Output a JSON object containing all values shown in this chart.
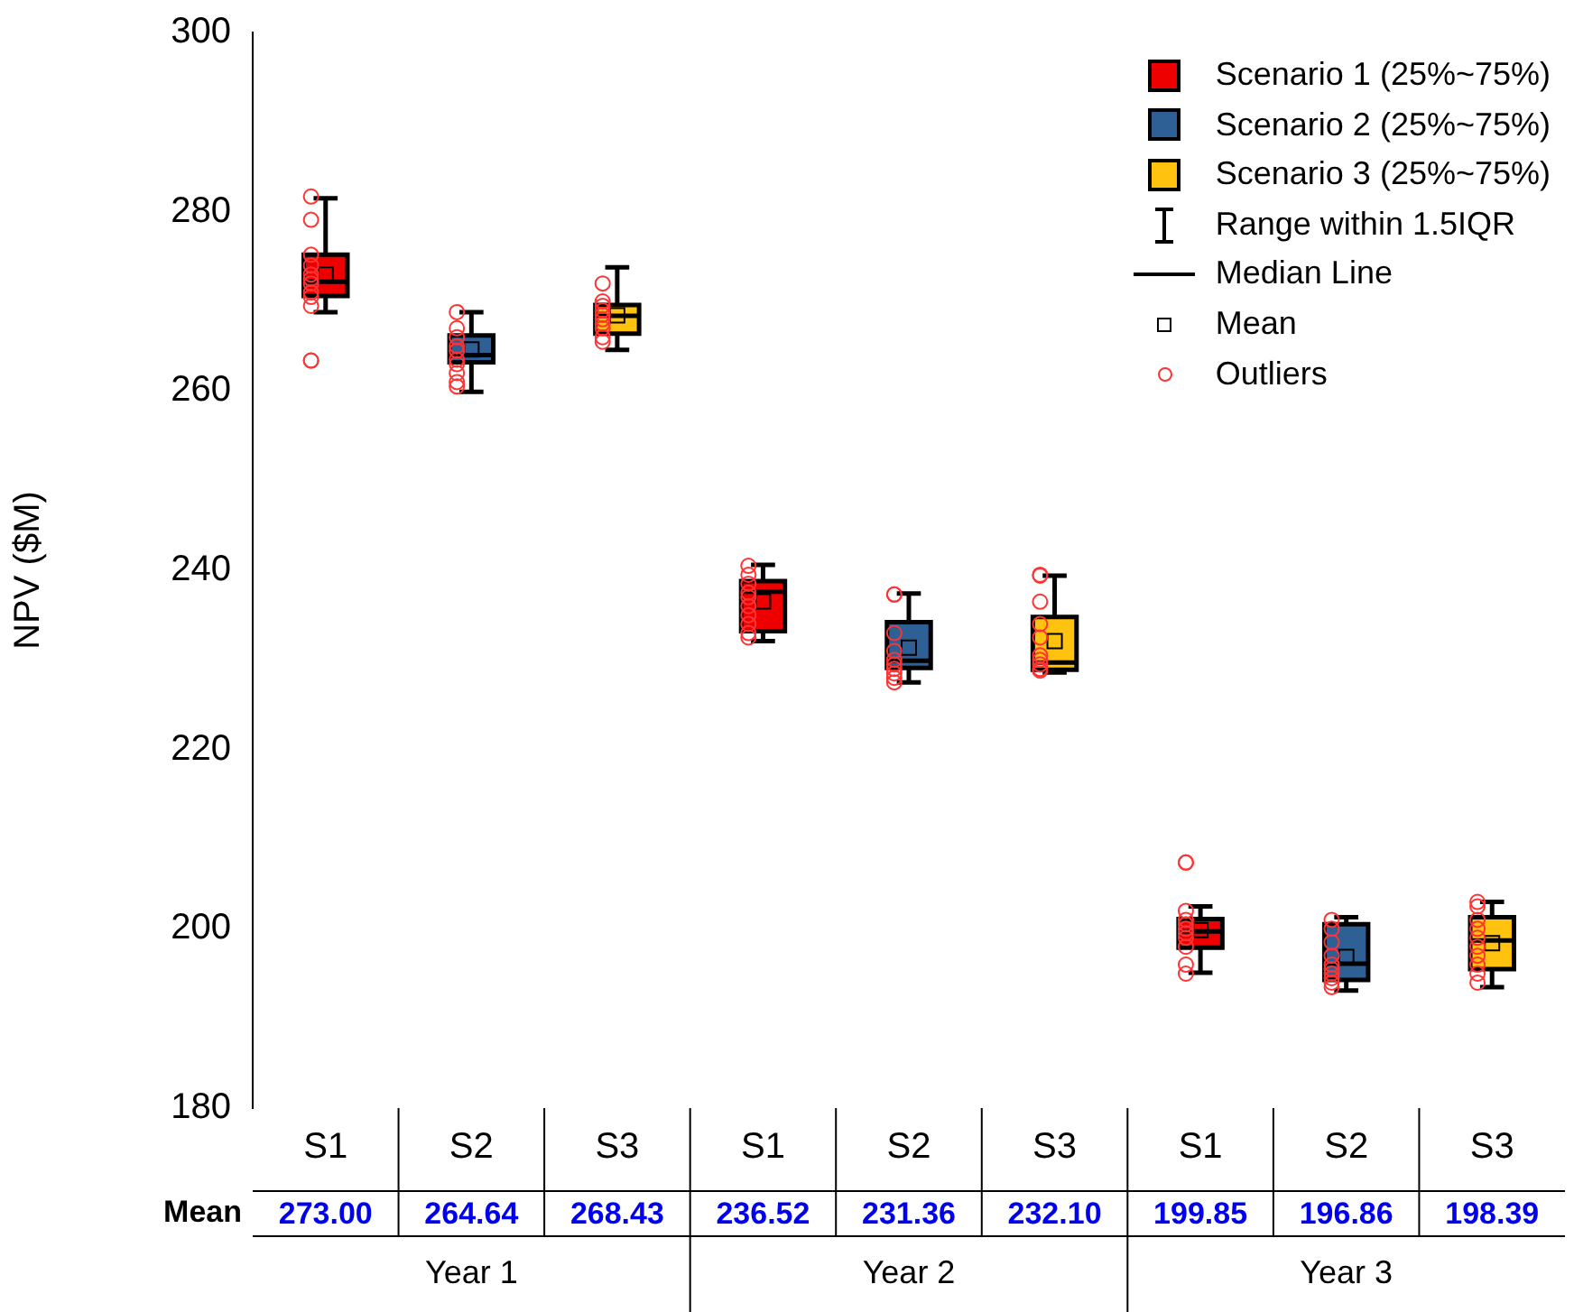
{
  "chart_data": {
    "type": "box",
    "ylabel": "NPV ($M)",
    "categories": [
      "S1",
      "S2",
      "S3",
      "S1",
      "S2",
      "S3",
      "S1",
      "S2",
      "S3"
    ],
    "ylim": [
      180,
      300
    ],
    "yticks": [
      180,
      200,
      220,
      240,
      260,
      280,
      300
    ],
    "grid": false,
    "legend": "top right",
    "value_labels": [
      "273.00",
      "264.64",
      "268.43",
      "236.52",
      "231.36",
      "232.10",
      "199.85",
      "196.86",
      "198.39"
    ],
    "annotations": [
      "Range within 1.5IQR",
      "Median Line",
      "Mean",
      "Outliers",
      "Mean",
      "Year 1",
      "Year 2",
      "Year 3"
    ],
    "series": [
      {
        "name": "Scenario 1 (25%~75%)",
        "color": "#ee0000",
        "boxes": [
          {
            "low": 268.8,
            "q1": 270.6,
            "median": 272.2,
            "q3": 275.2,
            "high": 281.5,
            "mean": 273.0,
            "outliers": [
              281.7,
              279.1,
              275.2,
              274,
              273,
              272.5,
              272,
              271,
              270.5,
              269.5,
              263.4,
              263.4
            ]
          },
          null,
          null,
          {
            "low": 232.1,
            "q1": 233.2,
            "median": 237.6,
            "q3": 238.8,
            "high": 240.6,
            "mean": 236.52,
            "outliers": [
              240.5,
              239.5,
              238.5,
              237.5,
              237,
              236,
              235,
              234,
              233,
              232.5
            ]
          },
          null,
          null,
          {
            "low": 195.1,
            "q1": 197.9,
            "median": 199.7,
            "q3": 201.1,
            "high": 202.5,
            "mean": 199.85,
            "outliers": [
              207.4,
              207.4,
              202,
              201,
              200.5,
              200,
              199.5,
              199,
              198,
              196,
              195
            ]
          },
          null,
          null
        ]
      },
      {
        "name": "Scenario 2 (25%~75%)",
        "color": "#2e5f95",
        "boxes": [
          null,
          {
            "low": 259.9,
            "q1": 263.2,
            "median": 264.0,
            "q3": 266.2,
            "high": 268.8,
            "mean": 264.64,
            "outliers": [
              268.8,
              267,
              266,
              265,
              264.5,
              263.5,
              263,
              262,
              261,
              260.5
            ]
          },
          null,
          null,
          {
            "low": 227.5,
            "q1": 229.1,
            "median": 229.9,
            "q3": 234.2,
            "high": 237.4,
            "mean": 231.36,
            "outliers": [
              237.3,
              237.3,
              233,
              231,
              230,
              229.5,
              229,
              228.5,
              228,
              227.5
            ]
          },
          null,
          null,
          {
            "low": 193.1,
            "q1": 194.3,
            "median": 196.1,
            "q3": 200.5,
            "high": 201.3,
            "mean": 196.86,
            "outliers": [
              201,
              200,
              198.5,
              197,
              196,
              195.5,
              195,
              194.5,
              194,
              193.5
            ]
          },
          null
        ]
      },
      {
        "name": "Scenario 3 (25%~75%)",
        "color": "#ffc20e",
        "boxes": [
          null,
          null,
          {
            "low": 264.6,
            "q1": 266.4,
            "median": 268.4,
            "q3": 269.6,
            "high": 273.8,
            "mean": 268.43,
            "outliers": [
              272,
              270,
              269.5,
              269,
              268.5,
              268,
              267.5,
              267,
              266,
              265.5
            ]
          },
          null,
          null,
          {
            "low": 228.6,
            "q1": 228.9,
            "median": 229.7,
            "q3": 234.8,
            "high": 239.4,
            "mean": 232.1,
            "outliers": [
              239.5,
              239.4,
              236.5,
              234,
              232.5,
              230.5,
              230,
              229.5,
              229,
              228.8
            ]
          },
          null,
          null,
          {
            "low": 193.5,
            "q1": 195.5,
            "median": 198.7,
            "q3": 201.3,
            "high": 203,
            "mean": 198.39,
            "outliers": [
              203,
              202.5,
              201,
              200,
              199,
              198,
              197,
              196,
              195,
              194
            ]
          }
        ]
      }
    ]
  }
}
